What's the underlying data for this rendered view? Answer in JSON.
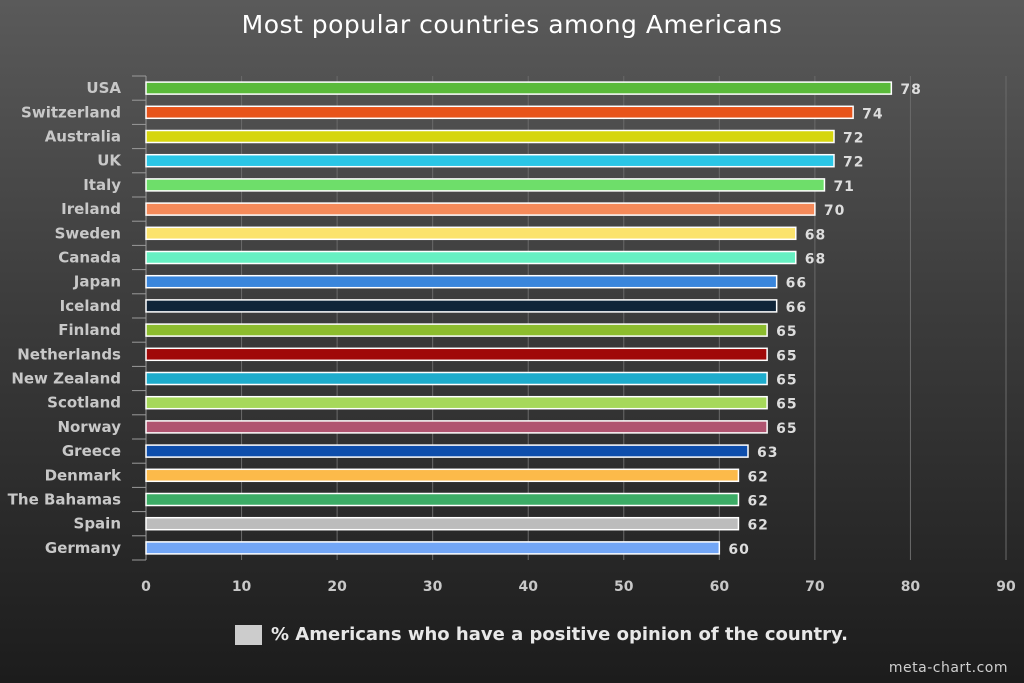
{
  "chart_data": {
    "type": "bar",
    "orientation": "horizontal",
    "title": "Most popular countries among Americans",
    "categories": [
      "USA",
      "Switzerland",
      "Australia",
      "UK",
      "Italy",
      "Ireland",
      "Sweden",
      "Canada",
      "Japan",
      "Iceland",
      "Finland",
      "Netherlands",
      "New Zealand",
      "Scotland",
      "Norway",
      "Greece",
      "Denmark",
      "The Bahamas",
      "Spain",
      "Germany"
    ],
    "series": [
      {
        "name": "% Americans who have a positive opinion of the country.",
        "values": [
          78,
          74,
          72,
          72,
          71,
          70,
          68,
          68,
          66,
          66,
          65,
          65,
          65,
          65,
          65,
          63,
          62,
          62,
          62,
          60
        ]
      }
    ],
    "bar_colors": [
      "#5aba3a",
      "#e8541b",
      "#d6d60e",
      "#2bc6e6",
      "#6ede6a",
      "#f58a5a",
      "#fbe36c",
      "#66f0c2",
      "#3a86dc",
      "#0f2438",
      "#8cbc2e",
      "#a00808",
      "#1eaccc",
      "#a6d85a",
      "#b05470",
      "#0e4eac",
      "#fcba4a",
      "#3cac66",
      "#bcbcbc",
      "#72a6f6"
    ],
    "xlim": [
      0,
      90
    ],
    "xticks": [
      0,
      10,
      20,
      30,
      40,
      50,
      60,
      70,
      80,
      90
    ],
    "grid": true,
    "legend_position": "bottom"
  },
  "footer": {
    "credit": "meta-chart.com"
  }
}
